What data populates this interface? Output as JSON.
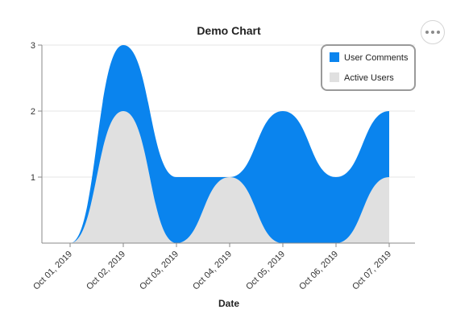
{
  "toolbar": {
    "more_icon": "more-horizontal-icon"
  },
  "chart_data": {
    "type": "area",
    "stacked": true,
    "curve": "smooth",
    "title": "Demo Chart",
    "xlabel": "Date",
    "ylabel": "",
    "x": [
      "Oct 01, 2019",
      "Oct 02, 2019",
      "Oct 03, 2019",
      "Oct 04, 2019",
      "Oct 05, 2019",
      "Oct 06, 2019",
      "Oct 07, 2019"
    ],
    "ylim": [
      0,
      3
    ],
    "yticks": [
      1,
      2,
      3
    ],
    "grid": "horizontal",
    "legend_position": "top-right",
    "series": [
      {
        "name": "Active Users",
        "values": [
          0,
          2,
          0,
          1,
          0,
          0,
          1
        ],
        "color": "#e0e0e0"
      },
      {
        "name": "User Comments",
        "values": [
          0,
          1,
          1,
          0,
          2,
          1,
          1
        ],
        "color": "#0a84ee"
      }
    ],
    "legend": [
      {
        "label": "User Comments",
        "color": "#0a84ee"
      },
      {
        "label": "Active Users",
        "color": "#e0e0e0"
      }
    ]
  }
}
